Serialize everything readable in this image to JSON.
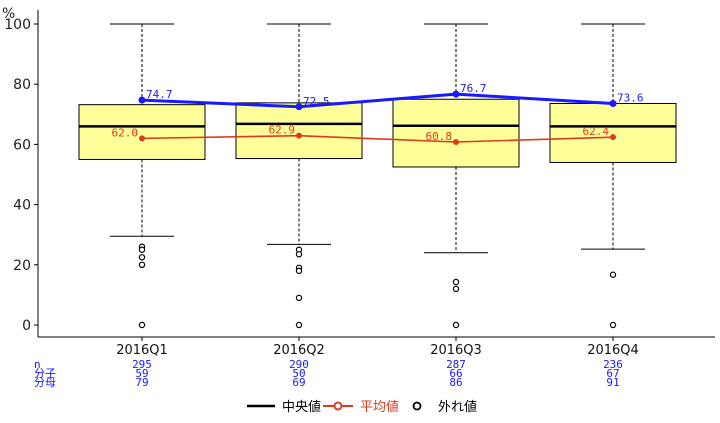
{
  "chart_data": {
    "type": "box",
    "y_unit": "%",
    "ylim": [
      0,
      100
    ],
    "y_ticks": [
      0,
      20,
      40,
      60,
      80,
      100
    ],
    "categories": [
      "2016Q1",
      "2016Q2",
      "2016Q3",
      "2016Q4"
    ],
    "boxes": [
      {
        "q1": 55.0,
        "median": 66.0,
        "q3": 73.2,
        "whisker_low": 29.5,
        "whisker_high": 100,
        "outliers": [
          26.0,
          25.0,
          22.5,
          20.0,
          0
        ]
      },
      {
        "q1": 55.3,
        "median": 66.8,
        "q3": 73.8,
        "whisker_low": 26.8,
        "whisker_high": 100,
        "outliers": [
          25.0,
          23.5,
          19.0,
          18.0,
          9.0,
          0
        ]
      },
      {
        "q1": 52.5,
        "median": 66.2,
        "q3": 75.0,
        "whisker_low": 24.0,
        "whisker_high": 100,
        "outliers": [
          14.3,
          12.0,
          0
        ]
      },
      {
        "q1": 54.0,
        "median": 66.0,
        "q3": 73.6,
        "whisker_low": 25.2,
        "whisker_high": 100,
        "outliers": [
          16.7,
          0
        ]
      }
    ],
    "series": [
      {
        "name": "平均値",
        "values": [
          62.0,
          62.9,
          60.8,
          62.4
        ],
        "labels": [
          "62.0",
          "62.9",
          "60.8",
          "62.4"
        ],
        "color": "#e03a1e"
      },
      {
        "name": "",
        "values": [
          74.7,
          72.5,
          76.7,
          73.6
        ],
        "labels": [
          "74.7",
          "72.5",
          "76.7",
          "73.6"
        ],
        "color": "#1a1aff"
      }
    ],
    "legend": {
      "placement": "bottom",
      "entries": [
        {
          "label": "中央値",
          "color": "#000000"
        },
        {
          "label": "平均値",
          "color": "#e03a1e"
        },
        {
          "label": "外れ値",
          "color": "#000000"
        }
      ]
    },
    "table_rows": [
      {
        "label": "n",
        "values": [
          "295",
          "290",
          "287",
          "236"
        ]
      },
      {
        "label": "分子",
        "values": [
          "59",
          "50",
          "66",
          "67"
        ]
      },
      {
        "label": "分母",
        "values": [
          "79",
          "69",
          "86",
          "91"
        ]
      }
    ],
    "box_fill": "#ffff99",
    "grid": false
  }
}
